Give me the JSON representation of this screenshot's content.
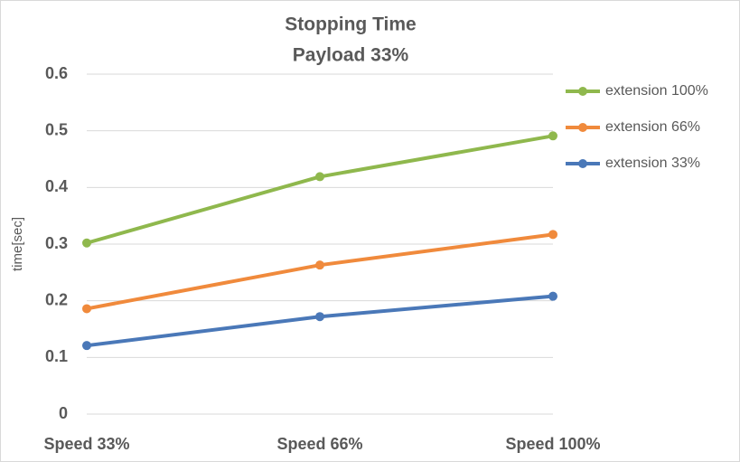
{
  "chart_data": {
    "type": "line",
    "title": "Stopping Time",
    "subtitle": "Payload 33%",
    "y_label": "time[sec]",
    "categories": [
      "Speed 33%",
      "Speed 66%",
      "Speed 100%"
    ],
    "series": [
      {
        "name": "extension 100%",
        "color": "#8fb84d",
        "values": [
          0.302,
          0.419,
          0.491
        ]
      },
      {
        "name": "extension 66%",
        "color": "#f08a3c",
        "values": [
          0.186,
          0.263,
          0.317
        ]
      },
      {
        "name": "extension 33%",
        "color": "#4a78b8",
        "values": [
          0.121,
          0.172,
          0.208
        ]
      }
    ],
    "ylim": [
      0,
      0.6
    ],
    "yticks": [
      0,
      0.1,
      0.2,
      0.3,
      0.4,
      0.5,
      0.6
    ],
    "grid": true,
    "legend": "right"
  }
}
